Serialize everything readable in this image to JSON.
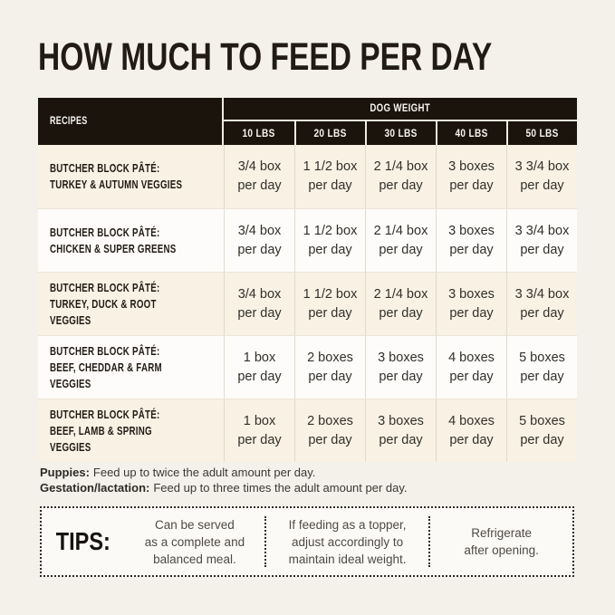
{
  "page": {
    "title": "HOW MUCH TO FEED PER DAY",
    "background": "#f4f1ea"
  },
  "colors": {
    "header_bg": "#1a140d",
    "header_text": "#f8f5ef",
    "row_cream": "#f8f1e4",
    "row_white": "#fdfcfa",
    "text_dark": "#221b15"
  },
  "table": {
    "recipes_header": "RECIPES",
    "dog_weight_header": "DOG WEIGHT",
    "weight_columns": [
      "10 LBS",
      "20 LBS",
      "30 LBS",
      "40 LBS",
      "50 LBS"
    ],
    "rows": [
      {
        "recipe_line1": "BUTCHER BLOCK PÂTÉ:",
        "recipe_line2": "TURKEY & AUTUMN VEGGIES",
        "cells": [
          {
            "amount": "3/4 box",
            "freq": "per day"
          },
          {
            "amount": "1 1/2 box",
            "freq": "per day"
          },
          {
            "amount": "2 1/4 box",
            "freq": "per day"
          },
          {
            "amount": "3 boxes",
            "freq": "per day"
          },
          {
            "amount": "3 3/4 box",
            "freq": "per day"
          }
        ]
      },
      {
        "recipe_line1": "BUTCHER BLOCK PÂTÉ:",
        "recipe_line2": "CHICKEN & SUPER GREENS",
        "cells": [
          {
            "amount": "3/4 box",
            "freq": "per day"
          },
          {
            "amount": "1 1/2 box",
            "freq": "per day"
          },
          {
            "amount": "2 1/4 box",
            "freq": "per day"
          },
          {
            "amount": "3 boxes",
            "freq": "per day"
          },
          {
            "amount": "3 3/4 box",
            "freq": "per day"
          }
        ]
      },
      {
        "recipe_line1": "BUTCHER BLOCK PÂTÉ:",
        "recipe_line2": "TURKEY, DUCK & ROOT VEGGIES",
        "cells": [
          {
            "amount": "3/4 box",
            "freq": "per day"
          },
          {
            "amount": "1 1/2 box",
            "freq": "per day"
          },
          {
            "amount": "2 1/4 box",
            "freq": "per day"
          },
          {
            "amount": "3 boxes",
            "freq": "per day"
          },
          {
            "amount": "3 3/4 box",
            "freq": "per day"
          }
        ]
      },
      {
        "recipe_line1": "BUTCHER BLOCK PÂTÉ:",
        "recipe_line2": "BEEF, CHEDDAR & FARM VEGGIES",
        "cells": [
          {
            "amount": "1 box",
            "freq": "per day"
          },
          {
            "amount": "2 boxes",
            "freq": "per day"
          },
          {
            "amount": "3 boxes",
            "freq": "per day"
          },
          {
            "amount": "4 boxes",
            "freq": "per day"
          },
          {
            "amount": "5 boxes",
            "freq": "per day"
          }
        ]
      },
      {
        "recipe_line1": "BUTCHER BLOCK PÂTÉ:",
        "recipe_line2": "BEEF, LAMB & SPRING VEGGIES",
        "cells": [
          {
            "amount": "1 box",
            "freq": "per day"
          },
          {
            "amount": "2 boxes",
            "freq": "per day"
          },
          {
            "amount": "3 boxes",
            "freq": "per day"
          },
          {
            "amount": "4 boxes",
            "freq": "per day"
          },
          {
            "amount": "5 boxes",
            "freq": "per day"
          }
        ]
      }
    ]
  },
  "notes": [
    {
      "label": "Puppies:",
      "text": "Feed up to twice the adult amount per day."
    },
    {
      "label": "Gestation/lactation:",
      "text": "Feed up to three times the adult amount per day."
    }
  ],
  "tips": {
    "label": "TIPS:",
    "items": [
      "Can be served\nas a complete and\nbalanced meal.",
      "If feeding as a topper,\nadjust accordingly to\nmaintain ideal weight.",
      "Refrigerate\nafter opening."
    ]
  }
}
